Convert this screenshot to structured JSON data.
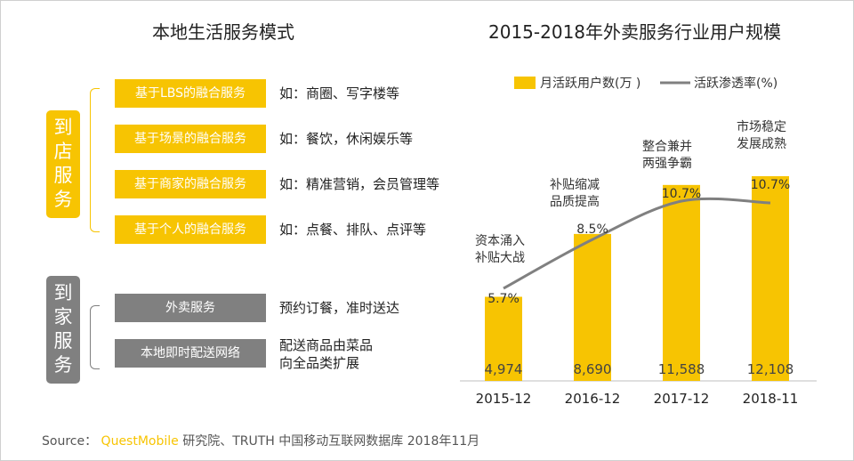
{
  "left": {
    "title": "本地生活服务模式",
    "group1": {
      "label_chars": [
        "到",
        "店",
        "服",
        "务"
      ],
      "items": [
        {
          "box": "基于LBS的融合服务",
          "desc": "如：商圈、写字楼等"
        },
        {
          "box": "基于场景的融合服务",
          "desc": "如：餐饮，休闲娱乐等"
        },
        {
          "box": "基于商家的融合服务",
          "desc": "如：精准营销，会员管理等"
        },
        {
          "box": "基于个人的融合服务",
          "desc": "如：点餐、排队、点评等"
        }
      ]
    },
    "group2": {
      "label_chars": [
        "到",
        "家",
        "服",
        "务"
      ],
      "items": [
        {
          "box": "外卖服务",
          "desc": [
            "预约订餐，准时送达"
          ]
        },
        {
          "box": "本地即时配送网络",
          "desc": [
            "配送商品由菜品",
            "向全品类扩展"
          ]
        }
      ]
    },
    "colors": {
      "yellow": "#f7c402",
      "grey": "#808080"
    }
  },
  "chart_data": {
    "type": "bar",
    "title": "2015-2018年外卖服务行业用户规模",
    "categories": [
      "2015-12",
      "2016-12",
      "2017-12",
      "2018-11"
    ],
    "series": [
      {
        "name": "月活跃用户数(万 )",
        "kind": "bar",
        "values": [
          4974,
          8690,
          11588,
          12108
        ],
        "labels": [
          "4,974",
          "8,690",
          "11,588",
          "12,108"
        ],
        "color": "#f7c402"
      },
      {
        "name": "活跃渗透率(%)",
        "kind": "line",
        "values": [
          5.7,
          8.5,
          10.7,
          10.7
        ],
        "labels": [
          "5.7%",
          "8.5%",
          "10.7%",
          "10.7%"
        ],
        "color": "#808080"
      }
    ],
    "annotations": [
      [
        "资本涌入",
        "补贴大战"
      ],
      [
        "补贴缩减",
        "品质提高"
      ],
      [
        "整合兼并",
        "两强争霸"
      ],
      [
        "市场稳定",
        "发展成熟"
      ]
    ],
    "ylim": [
      0,
      15000
    ],
    "line_ylim": [
      0,
      14
    ],
    "legend_position": "top"
  },
  "source": {
    "prefix": "Source：",
    "brand": "QuestMobile",
    "rest": "研究院、TRUTH 中国移动互联网数据库 2018年11月"
  }
}
